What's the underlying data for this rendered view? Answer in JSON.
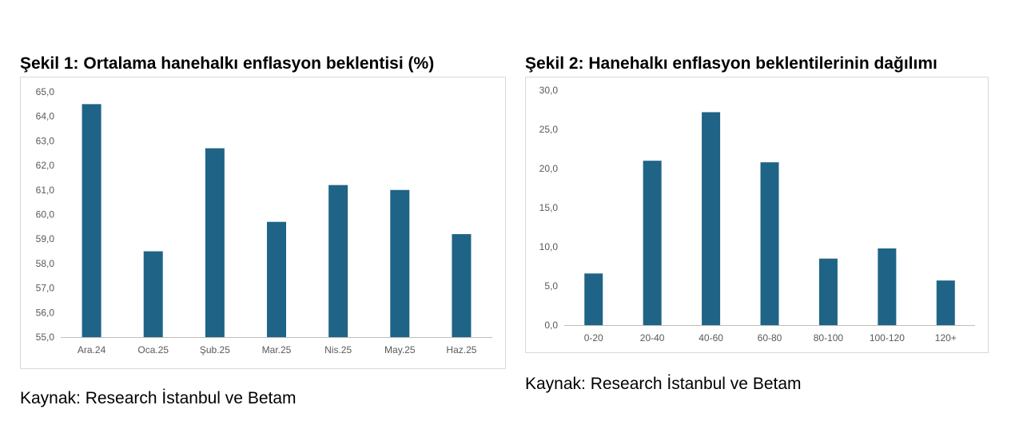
{
  "figure1": {
    "title": "Şekil 1: Ortalama hanehalkı enflasyon beklentisi (%)",
    "source": "Kaynak: Research İstanbul ve Betam"
  },
  "figure2": {
    "title": "Şekil 2: Hanehalkı enflasyon beklentilerinin dağılımı",
    "source": "Kaynak: Research İstanbul ve Betam"
  },
  "colors": {
    "bar": "#1f6487",
    "axis": "#bfbfbf",
    "tick_text": "#595959"
  },
  "chart_data": [
    {
      "type": "bar",
      "title": "Şekil 1: Ortalama hanehalkı enflasyon beklentisi (%)",
      "categories": [
        "Ara.24",
        "Oca.25",
        "Şub.25",
        "Mar.25",
        "Nis.25",
        "May.25",
        "Haz.25"
      ],
      "values": [
        64.5,
        58.5,
        62.7,
        59.7,
        61.2,
        61.0,
        59.2
      ],
      "ylim": [
        55,
        65
      ],
      "yticks": [
        "55,0",
        "56,0",
        "57,0",
        "58,0",
        "59,0",
        "60,0",
        "61,0",
        "62,0",
        "63,0",
        "64,0",
        "65,0"
      ],
      "grid": false,
      "xlabel": "",
      "ylabel": ""
    },
    {
      "type": "bar",
      "title": "Şekil 2: Hanehalkı enflasyon beklentilerinin dağılımı",
      "categories": [
        "0-20",
        "20-40",
        "40-60",
        "60-80",
        "80-100",
        "100-120",
        "120+"
      ],
      "values": [
        6.6,
        21.0,
        27.2,
        20.8,
        8.5,
        9.8,
        5.7
      ],
      "ylim": [
        0,
        30
      ],
      "yticks": [
        "0,0",
        "5,0",
        "10,0",
        "15,0",
        "20,0",
        "25,0",
        "30,0"
      ],
      "grid": false,
      "xlabel": "",
      "ylabel": ""
    }
  ]
}
